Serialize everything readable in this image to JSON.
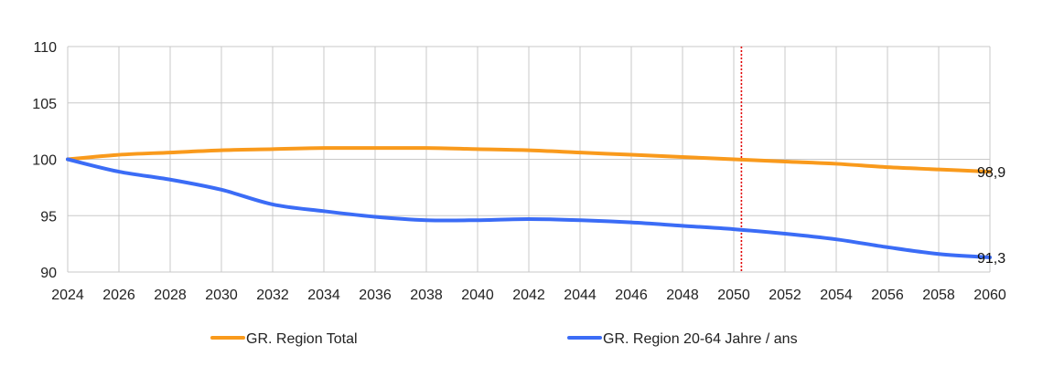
{
  "chart_data": {
    "type": "line",
    "title": "",
    "xlabel": "",
    "ylabel": "",
    "xlim": [
      2024,
      2060
    ],
    "ylim": [
      90,
      110
    ],
    "y_ticks": [
      "90",
      "95",
      "100",
      "105",
      "110"
    ],
    "x_ticks": [
      "2024",
      "2026",
      "2028",
      "2030",
      "2032",
      "2034",
      "2036",
      "2038",
      "2040",
      "2042",
      "2044",
      "2046",
      "2048",
      "2050",
      "2052",
      "2054",
      "2056",
      "2058",
      "2060"
    ],
    "grid": true,
    "legend_position": "bottom",
    "reference_line": {
      "x": 2050.3,
      "color": "#e00000",
      "style": "dotted"
    },
    "series": [
      {
        "name": "GR. Region Total",
        "color": "#f99a1c",
        "end_label": "98,9",
        "points": [
          [
            2024,
            100.0
          ],
          [
            2026,
            100.4
          ],
          [
            2028,
            100.6
          ],
          [
            2030,
            100.8
          ],
          [
            2032,
            100.9
          ],
          [
            2034,
            101.0
          ],
          [
            2036,
            101.0
          ],
          [
            2038,
            101.0
          ],
          [
            2040,
            100.9
          ],
          [
            2042,
            100.8
          ],
          [
            2044,
            100.6
          ],
          [
            2046,
            100.4
          ],
          [
            2048,
            100.2
          ],
          [
            2050,
            100.0
          ],
          [
            2052,
            99.8
          ],
          [
            2054,
            99.6
          ],
          [
            2056,
            99.3
          ],
          [
            2058,
            99.1
          ],
          [
            2060,
            98.9
          ]
        ]
      },
      {
        "name": "GR. Region 20-64 Jahre / ans",
        "color": "#3b6cf6",
        "end_label": "91,3",
        "points": [
          [
            2024,
            100.0
          ],
          [
            2026,
            98.9
          ],
          [
            2028,
            98.2
          ],
          [
            2030,
            97.3
          ],
          [
            2032,
            96.0
          ],
          [
            2034,
            95.4
          ],
          [
            2036,
            94.9
          ],
          [
            2038,
            94.6
          ],
          [
            2040,
            94.6
          ],
          [
            2042,
            94.7
          ],
          [
            2044,
            94.6
          ],
          [
            2046,
            94.4
          ],
          [
            2048,
            94.1
          ],
          [
            2050,
            93.8
          ],
          [
            2052,
            93.4
          ],
          [
            2054,
            92.9
          ],
          [
            2056,
            92.2
          ],
          [
            2058,
            91.6
          ],
          [
            2060,
            91.3
          ]
        ]
      }
    ]
  }
}
